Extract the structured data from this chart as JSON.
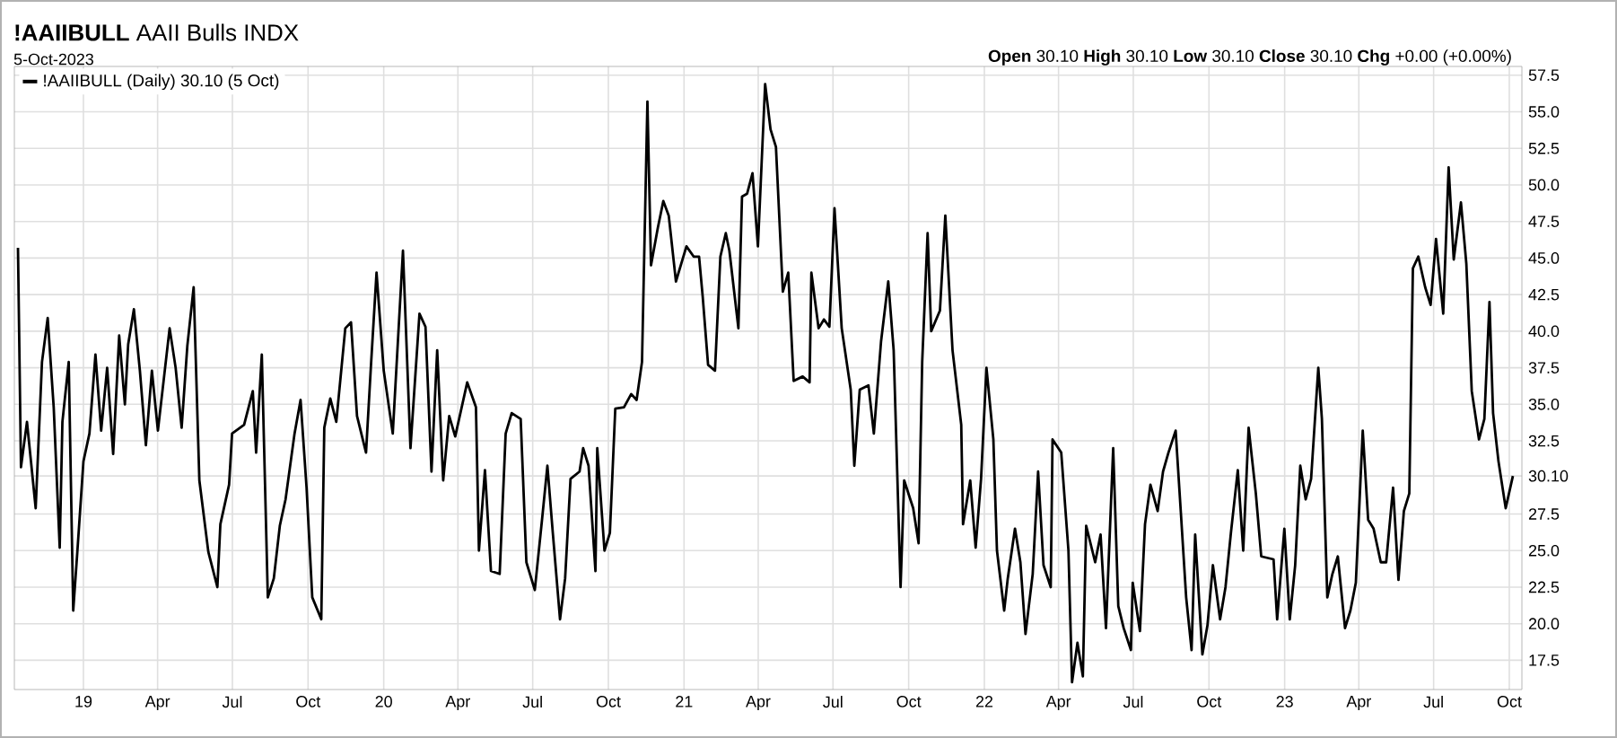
{
  "chart_data": {
    "type": "line",
    "title": "**!AAIIBULL** AAII Bulls INDX",
    "subtitle": "5-Oct-2023",
    "annotations": [
      "**Open** 30.10 **High** 30.10 **Low** 30.10 **Close** 30.10 **Chg** +0.00 (+0.00%)"
    ],
    "legend": "top left",
    "grid": true,
    "xlim": [
      2018.77,
      2023.79
    ],
    "ylim": [
      15.5,
      58.1
    ],
    "xticks": [
      {
        "value": 2019,
        "label": "19"
      },
      {
        "value": 2019.247,
        "label": "Apr"
      },
      {
        "value": 2019.496,
        "label": "Jul"
      },
      {
        "value": 2019.748,
        "label": "Oct"
      },
      {
        "value": 2020,
        "label": "20"
      },
      {
        "value": 2020.247,
        "label": "Apr"
      },
      {
        "value": 2020.496,
        "label": "Jul"
      },
      {
        "value": 2020.748,
        "label": "Oct"
      },
      {
        "value": 2021,
        "label": "21"
      },
      {
        "value": 2021.247,
        "label": "Apr"
      },
      {
        "value": 2021.496,
        "label": "Jul"
      },
      {
        "value": 2021.748,
        "label": "Oct"
      },
      {
        "value": 2022,
        "label": "22"
      },
      {
        "value": 2022.247,
        "label": "Apr"
      },
      {
        "value": 2022.496,
        "label": "Jul"
      },
      {
        "value": 2022.748,
        "label": "Oct"
      },
      {
        "value": 2023,
        "label": "23"
      },
      {
        "value": 2023.247,
        "label": "Apr"
      },
      {
        "value": 2023.496,
        "label": "Jul"
      },
      {
        "value": 2023.748,
        "label": "Oct"
      }
    ],
    "yticks": [
      {
        "value": 17.5,
        "label": "17.5"
      },
      {
        "value": 20,
        "label": "20.0"
      },
      {
        "value": 22.5,
        "label": "22.5"
      },
      {
        "value": 25,
        "label": "25.0"
      },
      {
        "value": 27.5,
        "label": "27.5"
      },
      {
        "value": 30.1,
        "label": "30.10"
      },
      {
        "value": 32.5,
        "label": "32.5"
      },
      {
        "value": 35,
        "label": "35.0"
      },
      {
        "value": 37.5,
        "label": "37.5"
      },
      {
        "value": 40,
        "label": "40.0"
      },
      {
        "value": 42.5,
        "label": "42.5"
      },
      {
        "value": 45,
        "label": "45.0"
      },
      {
        "value": 47.5,
        "label": "47.5"
      },
      {
        "value": 50,
        "label": "50.0"
      },
      {
        "value": 52.5,
        "label": "52.5"
      },
      {
        "value": 55,
        "label": "55.0"
      },
      {
        "value": 57.5,
        "label": "57.5"
      }
    ],
    "series": [
      {
        "name": "!AAIIBULL (Daily) 30.10 (5 Oct)",
        "color": "#000000",
        "x": [
          2018.782,
          2018.792,
          2018.812,
          2018.841,
          2018.862,
          2018.881,
          2018.901,
          2018.921,
          2018.93,
          2018.951,
          2018.966,
          2018.98,
          2019.0,
          2019.02,
          2019.04,
          2019.059,
          2019.079,
          2019.099,
          2019.119,
          2019.138,
          2019.149,
          2019.168,
          2019.188,
          2019.208,
          2019.228,
          2019.248,
          2019.287,
          2019.307,
          2019.327,
          2019.346,
          2019.367,
          2019.386,
          2019.416,
          2019.446,
          2019.456,
          2019.485,
          2019.495,
          2019.535,
          2019.564,
          2019.575,
          2019.594,
          2019.614,
          2019.634,
          2019.654,
          2019.673,
          2019.703,
          2019.723,
          2019.743,
          2019.762,
          2019.792,
          2019.802,
          2019.822,
          2019.842,
          2019.872,
          2019.891,
          2019.911,
          2019.941,
          2019.957,
          2019.976,
          2020.0,
          2020.03,
          2020.064,
          2020.089,
          2020.119,
          2020.139,
          2020.159,
          2020.178,
          2020.198,
          2020.218,
          2020.238,
          2020.278,
          2020.307,
          2020.317,
          2020.337,
          2020.357,
          2020.386,
          2020.406,
          2020.426,
          2020.456,
          2020.475,
          2020.503,
          2020.527,
          2020.545,
          2020.563,
          2020.587,
          2020.604,
          2020.622,
          2020.652,
          2020.664,
          2020.682,
          2020.705,
          2020.711,
          2020.735,
          2020.753,
          2020.771,
          2020.8,
          2020.824,
          2020.842,
          2020.86,
          2020.878,
          2020.89,
          2020.913,
          2020.931,
          2020.949,
          2020.973,
          2021.008,
          2021.032,
          2021.05,
          2021.062,
          2021.08,
          2021.103,
          2021.121,
          2021.139,
          2021.151,
          2021.181,
          2021.193,
          2021.21,
          2021.228,
          2021.246,
          2021.27,
          2021.288,
          2021.306,
          2021.329,
          2021.347,
          2021.365,
          2021.395,
          2021.418,
          2021.424,
          2021.448,
          2021.466,
          2021.484,
          2021.501,
          2021.525,
          2021.555,
          2021.567,
          2021.585,
          2021.614,
          2021.632,
          2021.656,
          2021.68,
          2021.698,
          2021.721,
          2021.733,
          2021.763,
          2021.781,
          2021.793,
          2021.811,
          2021.823,
          2021.852,
          2021.87,
          2021.894,
          2021.923,
          2021.929,
          2021.953,
          2021.971,
          2021.989,
          2022.007,
          2022.03,
          2022.042,
          2022.066,
          2022.078,
          2022.102,
          2022.12,
          2022.137,
          2022.161,
          2022.179,
          2022.197,
          2022.221,
          2022.227,
          2022.256,
          2022.28,
          2022.292,
          2022.31,
          2022.328,
          2022.339,
          2022.369,
          2022.387,
          2022.405,
          2022.429,
          2022.446,
          2022.464,
          2022.488,
          2022.494,
          2022.518,
          2022.535,
          2022.553,
          2022.577,
          2022.595,
          2022.613,
          2022.637,
          2022.654,
          2022.672,
          2022.69,
          2022.702,
          2022.726,
          2022.743,
          2022.761,
          2022.785,
          2022.803,
          2022.821,
          2022.844,
          2022.862,
          2022.88,
          2022.904,
          2022.922,
          2022.963,
          2022.975,
          2022.999,
          2023.017,
          2023.035,
          2023.052,
          2023.07,
          2023.088,
          2023.112,
          2023.124,
          2023.142,
          2023.159,
          2023.177,
          2023.201,
          2023.219,
          2023.237,
          2023.26,
          2023.278,
          2023.296,
          2023.32,
          2023.338,
          2023.361,
          2023.379,
          2023.397,
          2023.415,
          2023.427,
          2023.445,
          2023.468,
          2023.486,
          2023.504,
          2023.528,
          2023.546,
          2023.563,
          2023.587,
          2023.605,
          2023.623,
          2023.647,
          2023.665,
          2023.682,
          2023.694,
          2023.712,
          2023.736,
          2023.76
        ],
        "values": [
          45.7,
          30.7,
          33.8,
          27.9,
          37.9,
          40.9,
          34.8,
          25.2,
          33.8,
          37.9,
          20.9,
          25.0,
          31.1,
          33.0,
          38.4,
          33.2,
          37.5,
          31.6,
          39.7,
          35.0,
          39.1,
          41.5,
          37.3,
          32.2,
          37.3,
          33.2,
          40.2,
          37.5,
          33.4,
          39.0,
          43.0,
          29.8,
          24.9,
          22.5,
          26.8,
          29.5,
          33.0,
          33.6,
          35.9,
          31.7,
          38.4,
          21.8,
          23.1,
          26.7,
          28.5,
          33.0,
          35.3,
          29.3,
          21.8,
          20.3,
          33.4,
          35.4,
          33.8,
          40.2,
          40.6,
          34.2,
          31.7,
          37.5,
          44.0,
          37.3,
          33.0,
          45.5,
          32.0,
          41.2,
          40.3,
          30.4,
          38.7,
          29.8,
          34.2,
          32.8,
          36.5,
          34.8,
          25.0,
          30.5,
          23.6,
          23.4,
          33.0,
          34.4,
          34.0,
          24.2,
          22.3,
          27.1,
          30.8,
          26.2,
          20.3,
          23.1,
          29.9,
          30.4,
          32.0,
          30.8,
          23.6,
          32.0,
          25.0,
          26.2,
          34.7,
          34.8,
          35.7,
          35.3,
          37.9,
          55.7,
          44.5,
          47.1,
          48.9,
          47.9,
          43.4,
          45.8,
          45.1,
          45.1,
          42.4,
          37.7,
          37.3,
          45.1,
          46.7,
          45.5,
          40.2,
          49.2,
          49.4,
          50.8,
          45.8,
          56.9,
          53.8,
          52.6,
          42.7,
          44.0,
          36.6,
          36.9,
          36.5,
          44.0,
          40.2,
          40.8,
          40.3,
          48.4,
          40.2,
          36.0,
          30.8,
          36.0,
          36.3,
          33.0,
          39.3,
          43.4,
          38.7,
          22.5,
          29.8,
          27.9,
          25.5,
          37.9,
          46.7,
          40.0,
          41.4,
          47.9,
          38.7,
          33.6,
          26.8,
          29.8,
          25.2,
          29.9,
          37.5,
          32.6,
          25.0,
          20.9,
          23.1,
          26.5,
          24.2,
          19.3,
          23.4,
          30.4,
          24.0,
          22.5,
          32.6,
          31.7,
          25.0,
          16.0,
          18.7,
          16.4,
          26.7,
          24.2,
          26.1,
          19.7,
          32.0,
          21.2,
          19.7,
          18.2,
          22.8,
          19.5,
          26.8,
          29.5,
          27.7,
          30.4,
          31.7,
          33.2,
          27.7,
          21.8,
          18.2,
          26.1,
          17.9,
          19.9,
          24.0,
          20.3,
          22.5,
          26.2,
          30.5,
          25.0,
          33.4,
          28.9,
          24.6,
          24.4,
          20.3,
          26.5,
          20.3,
          24.0,
          30.8,
          28.5,
          29.9,
          37.5,
          34.0,
          21.8,
          23.4,
          24.6,
          19.7,
          20.9,
          22.8,
          33.2,
          27.1,
          26.5,
          24.2,
          24.2,
          29.3,
          23.0,
          27.7,
          28.9,
          44.3,
          45.1,
          43.0,
          41.8,
          46.3,
          41.2,
          51.2,
          44.9,
          48.8,
          44.6,
          35.9,
          32.6,
          34.0,
          42.0,
          34.4,
          31.1,
          27.9,
          30.1
        ]
      }
    ]
  }
}
